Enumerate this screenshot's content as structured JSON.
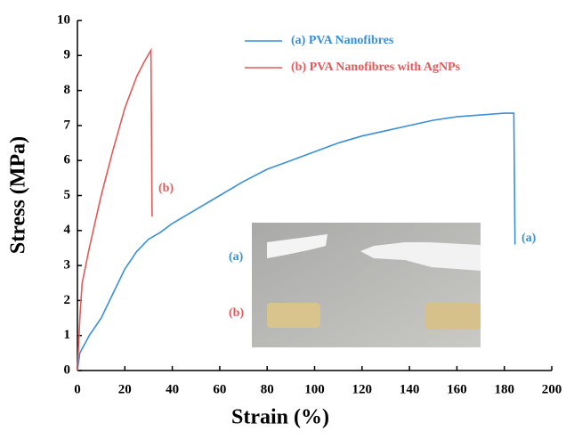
{
  "chart_data": {
    "type": "line",
    "x_label": "Strain (%)",
    "y_label": "Stress (MPa)",
    "xlim": [
      0,
      200
    ],
    "ylim": [
      0,
      10
    ],
    "xticks": [
      0,
      20,
      40,
      60,
      80,
      100,
      120,
      140,
      160,
      180,
      200
    ],
    "yticks": [
      0,
      1,
      2,
      3,
      4,
      5,
      6,
      7,
      8,
      9,
      10
    ],
    "grid": false,
    "legend": "upper center",
    "series": [
      {
        "name": "(a) PVA Nanofibres",
        "color": "#3b8fd6",
        "x": [
          0,
          1,
          5,
          10,
          15,
          20,
          25,
          30,
          35,
          40,
          50,
          60,
          70,
          80,
          90,
          100,
          110,
          120,
          130,
          140,
          150,
          160,
          170,
          180,
          184,
          184.5
        ],
        "values": [
          0,
          0.5,
          1.0,
          1.5,
          2.2,
          2.9,
          3.4,
          3.75,
          3.95,
          4.2,
          4.6,
          5.0,
          5.4,
          5.75,
          6.0,
          6.25,
          6.5,
          6.7,
          6.85,
          7.0,
          7.15,
          7.25,
          7.3,
          7.35,
          7.35,
          3.6
        ]
      },
      {
        "name": "(b) PVA Nanofibres with AgNPs",
        "color": "#e05a5a",
        "x": [
          0,
          1,
          2,
          5,
          10,
          15,
          20,
          25,
          28,
          31,
          31.5
        ],
        "values": [
          0,
          1.5,
          2.5,
          3.5,
          5.0,
          6.3,
          7.5,
          8.4,
          8.8,
          9.15,
          4.4
        ]
      }
    ],
    "annotations": [
      {
        "text": "(b)",
        "color": "#e05a5a"
      },
      {
        "text": "(a)",
        "color": "#3b8fd6"
      },
      {
        "text": "(a)",
        "color": "#3b8fd6"
      },
      {
        "text": "(b)",
        "color": "#e05a5a"
      }
    ]
  }
}
